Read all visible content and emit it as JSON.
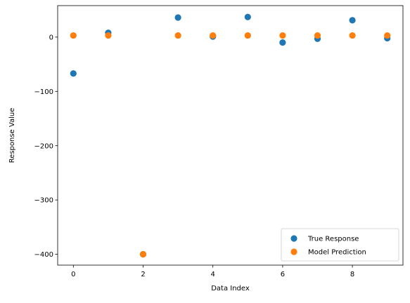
{
  "chart_data": {
    "type": "scatter",
    "title": "",
    "xlabel": "Data Index",
    "ylabel": "Response Value",
    "xlim": [
      -0.45,
      9.45
    ],
    "ylim": [
      -420,
      58
    ],
    "xticks": [
      0,
      2,
      4,
      6,
      8
    ],
    "yticks": [
      0,
      -100,
      -200,
      -300,
      -400
    ],
    "xtick_labels": [
      "0",
      "2",
      "4",
      "6",
      "8"
    ],
    "ytick_labels": [
      "0",
      "−100",
      "−200",
      "−300",
      "−400"
    ],
    "grid": false,
    "legend_position": "lower-right",
    "series": [
      {
        "name": "True Response",
        "color": "#1f77b4",
        "x": [
          0,
          1,
          2,
          3,
          4,
          5,
          6,
          7,
          8,
          9
        ],
        "y": [
          -67,
          8,
          -400,
          36,
          1,
          37,
          -10,
          -3,
          31,
          -2
        ]
      },
      {
        "name": "Model Prediction",
        "color": "#ff7f0e",
        "x": [
          0,
          1,
          2,
          3,
          4,
          5,
          6,
          7,
          8,
          9
        ],
        "y": [
          3,
          3,
          -400,
          3,
          3,
          3,
          3,
          3,
          3,
          3
        ]
      }
    ]
  }
}
